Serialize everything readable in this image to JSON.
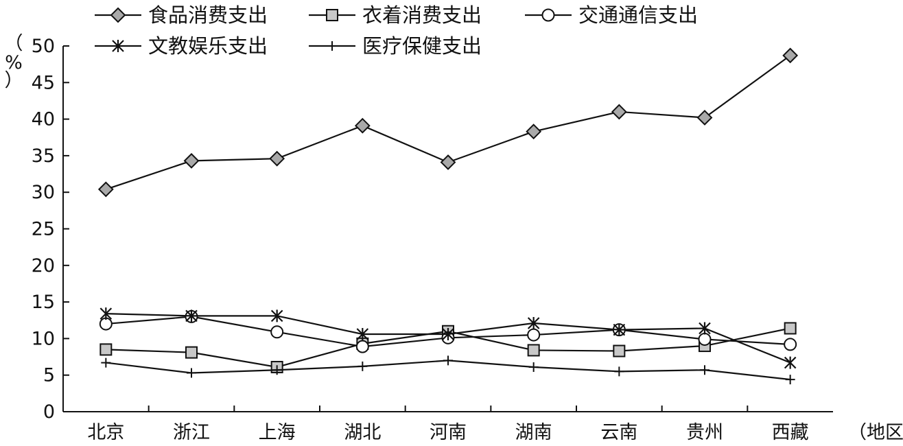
{
  "chart_data": {
    "type": "line",
    "title": "",
    "ylabel": "%",
    "xlabel": "地区",
    "ylim": [
      0,
      50
    ],
    "yticks": [
      0,
      5,
      10,
      15,
      20,
      25,
      30,
      35,
      40,
      45,
      50
    ],
    "grid": false,
    "legend_position": "top",
    "categories": [
      "北京",
      "浙江",
      "上海",
      "湖北",
      "河南",
      "湖南",
      "云南",
      "贵州",
      "西藏"
    ],
    "series": [
      {
        "name": "食品消费支出",
        "marker": "diamond",
        "values": [
          30.4,
          34.3,
          34.6,
          39.1,
          34.1,
          38.3,
          41.0,
          40.2,
          48.7
        ]
      },
      {
        "name": "衣着消费支出",
        "marker": "square",
        "values": [
          8.5,
          8.1,
          6.1,
          9.3,
          11.0,
          8.4,
          8.3,
          9.0,
          11.4
        ]
      },
      {
        "name": "交通通信支出",
        "marker": "circle",
        "values": [
          12.0,
          13.0,
          10.9,
          8.9,
          10.1,
          10.5,
          11.2,
          9.9,
          9.2
        ]
      },
      {
        "name": "文教娱乐支出",
        "marker": "asterisk",
        "values": [
          13.4,
          13.1,
          13.1,
          10.6,
          10.6,
          12.1,
          11.2,
          11.4,
          6.7
        ]
      },
      {
        "name": "医疗保健支出",
        "marker": "plus",
        "values": [
          6.7,
          5.3,
          5.7,
          6.2,
          7.0,
          6.1,
          5.5,
          5.7,
          4.4
        ]
      }
    ]
  }
}
